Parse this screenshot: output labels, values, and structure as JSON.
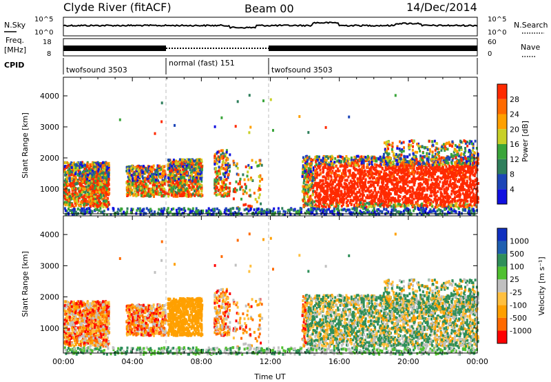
{
  "header": {
    "station": "Clyde River (fitACF)",
    "beam": "Beam 00",
    "date": "14/Dec/2014"
  },
  "noise_panel": {
    "left_label": "N.Sky",
    "right_label": "N.Search",
    "left_ticks": [
      "10^5",
      "10^0"
    ],
    "right_ticks": [
      "10^5",
      "10^0"
    ]
  },
  "freq_panel": {
    "left_label_1": "Freq.",
    "left_label_2": "[MHz]",
    "right_label": "Nave",
    "left_ticks": [
      "18",
      "8"
    ],
    "right_ticks": [
      "60",
      "0"
    ]
  },
  "cpid_panel": {
    "label": "CPID",
    "segments": [
      {
        "name": "twofsound 3503",
        "start": 0,
        "end": 6
      },
      {
        "name": "normal (fast) 151",
        "start": 6,
        "end": 12
      },
      {
        "name": "twofsound 3503",
        "start": 12,
        "end": 24
      }
    ]
  },
  "power_colorbar": {
    "label": "Power [dB]",
    "ticks": [
      "4",
      "8",
      "12",
      "16",
      "20",
      "24",
      "28"
    ],
    "colors": [
      "#1010e0",
      "#1d46b8",
      "#2f7f5c",
      "#3aa53a",
      "#c8d028",
      "#ffa000",
      "#ff6a00",
      "#ff2a00"
    ]
  },
  "velocity_colorbar": {
    "label": "Velocity [m s⁻¹]",
    "ticks": [
      "-1000",
      "-500",
      "-100",
      "-25",
      "25",
      "100",
      "500",
      "1000"
    ],
    "colors": [
      "#ff0000",
      "#ff6a00",
      "#ffa000",
      "#ffc040",
      "#c0c0c0",
      "#50c030",
      "#2f8f5a",
      "#1f5fb0",
      "#1030c0"
    ]
  },
  "chart_data": [
    {
      "type": "heatmap",
      "panel": "power",
      "ylabel": "Slant Range [km]",
      "xlabel": "",
      "xlim": [
        0,
        24
      ],
      "ylim": [
        200,
        4600
      ],
      "yticks": [
        1000,
        2000,
        3000,
        4000
      ],
      "boundaries_ut": [
        6,
        12
      ]
    },
    {
      "type": "heatmap",
      "panel": "velocity",
      "ylabel": "Slant Range [km]",
      "xlabel": "Time UT",
      "xlim": [
        0,
        24
      ],
      "ylim": [
        200,
        4600
      ],
      "yticks": [
        1000,
        2000,
        3000,
        4000
      ],
      "xticks": [
        "00:00",
        "04:00",
        "08:00",
        "12:00",
        "16:00",
        "20:00",
        "00:00"
      ],
      "boundaries_ut": [
        6,
        12
      ]
    }
  ]
}
